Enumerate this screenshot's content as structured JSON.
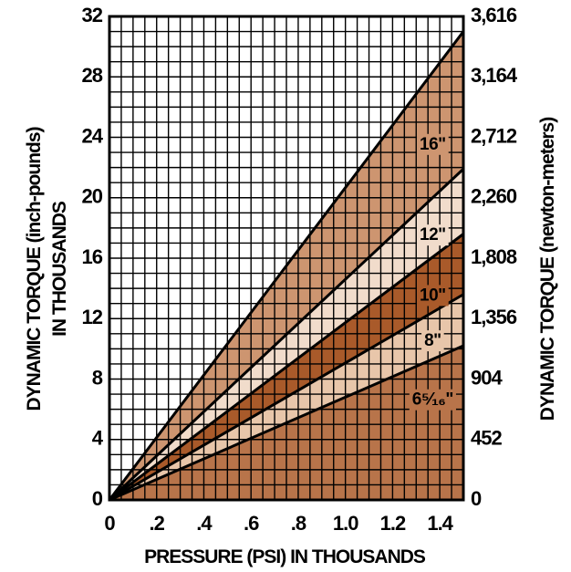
{
  "chart_data": {
    "type": "area",
    "xlabel": "PRESSURE (PSI) IN THOUSANDS",
    "ylabel_left_line1": "DYNAMIC TORQUE (inch-pounds)",
    "ylabel_left_line2": "IN THOUSANDS",
    "ylabel_right": "DYNAMIC TORQUE (newton-meters)",
    "xlim": [
      0,
      1.5
    ],
    "ylim": [
      0,
      32
    ],
    "x_ticks": [
      {
        "value": 0,
        "label": "0"
      },
      {
        "value": 0.2,
        "label": ".2"
      },
      {
        "value": 0.4,
        "label": ".4"
      },
      {
        "value": 0.6,
        "label": ".6"
      },
      {
        "value": 0.8,
        "label": ".8"
      },
      {
        "value": 1.0,
        "label": "1.0"
      },
      {
        "value": 1.2,
        "label": "1.2"
      },
      {
        "value": 1.4,
        "label": "1.4"
      }
    ],
    "y_ticks_left": [
      {
        "value": 0,
        "label": "0"
      },
      {
        "value": 4,
        "label": "4"
      },
      {
        "value": 8,
        "label": "8"
      },
      {
        "value": 12,
        "label": "12"
      },
      {
        "value": 16,
        "label": "16"
      },
      {
        "value": 20,
        "label": "20"
      },
      {
        "value": 24,
        "label": "24"
      },
      {
        "value": 28,
        "label": "28"
      },
      {
        "value": 32,
        "label": "32"
      }
    ],
    "y_ticks_right": [
      {
        "value": 0,
        "label": "0"
      },
      {
        "value": 4,
        "label": "452"
      },
      {
        "value": 8,
        "label": "904"
      },
      {
        "value": 12,
        "label": "1,356"
      },
      {
        "value": 16,
        "label": "1,808"
      },
      {
        "value": 20,
        "label": "2,260"
      },
      {
        "value": 24,
        "label": "2,712"
      },
      {
        "value": 28,
        "label": "3,164"
      },
      {
        "value": 32,
        "label": "3,616"
      }
    ],
    "grid": true,
    "series": [
      {
        "name": "6⁵⁄₁₆\"",
        "x": [
          0,
          1.5
        ],
        "y": [
          0,
          10.2
        ],
        "fill": "#b8744a",
        "label_at": [
          1.37,
          6.6
        ]
      },
      {
        "name": "8\"",
        "x": [
          0,
          1.5
        ],
        "y": [
          0,
          13.6
        ],
        "fill": "#e8c6aa",
        "label_at": [
          1.37,
          10.5
        ]
      },
      {
        "name": "10\"",
        "x": [
          0,
          1.5
        ],
        "y": [
          0,
          17.6
        ],
        "fill": "#a95a2a",
        "label_at": [
          1.37,
          13.5
        ]
      },
      {
        "name": "12\"",
        "x": [
          0,
          1.5
        ],
        "y": [
          0,
          21.9
        ],
        "fill": "#f1dccb",
        "label_at": [
          1.37,
          17.5
        ]
      },
      {
        "name": "16\"",
        "x": [
          0,
          1.5
        ],
        "y": [
          0,
          31.0
        ],
        "fill": "#cd9570",
        "label_at": [
          1.37,
          23.5
        ]
      }
    ]
  }
}
